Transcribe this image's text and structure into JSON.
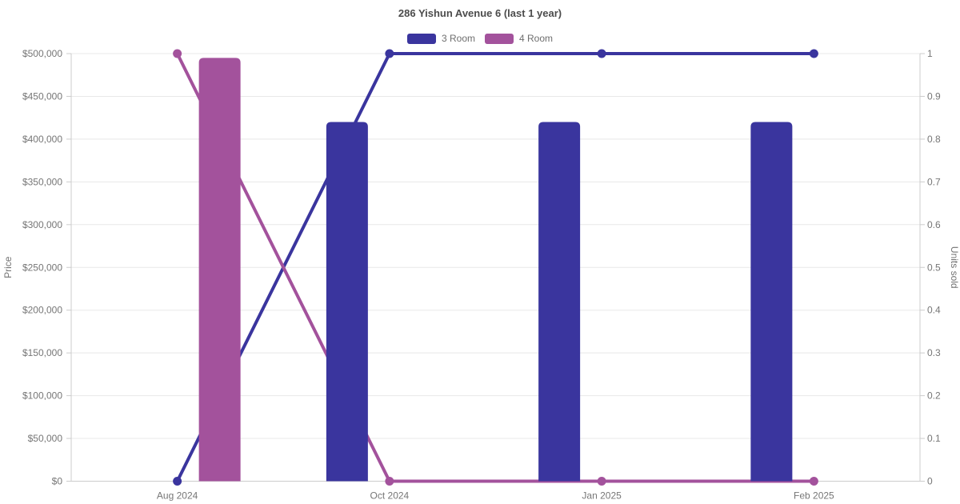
{
  "chart_data": {
    "type": "bar+line",
    "title": "286 Yishun Avenue 6 (last 1 year)",
    "categories": [
      "Aug 2024",
      "Oct 2024",
      "Jan 2025",
      "Feb 2025"
    ],
    "bar_series": [
      {
        "name": "3 Room",
        "color": "#3a359e",
        "axis": "left",
        "values": [
          null,
          420000,
          420000,
          420000
        ]
      },
      {
        "name": "4 Room",
        "color": "#a3529c",
        "axis": "left",
        "values": [
          495000,
          null,
          null,
          null
        ]
      }
    ],
    "line_series": [
      {
        "name": "3 Room",
        "color": "#3a359e",
        "axis": "right",
        "values": [
          0,
          1,
          1,
          1
        ]
      },
      {
        "name": "4 Room",
        "color": "#a3529c",
        "axis": "right",
        "values": [
          1,
          0,
          0,
          0
        ]
      }
    ],
    "left_axis": {
      "label": "Price",
      "min": 0,
      "max": 500000,
      "step": 50000,
      "tick_labels": [
        "$0",
        "$50,000",
        "$100,000",
        "$150,000",
        "$200,000",
        "$250,000",
        "$300,000",
        "$350,000",
        "$400,000",
        "$450,000",
        "$500,000"
      ]
    },
    "right_axis": {
      "label": "Units sold",
      "min": 0,
      "max": 1,
      "step": 0.1,
      "tick_labels": [
        "0",
        "0.1",
        "0.2",
        "0.3",
        "0.4",
        "0.5",
        "0.6",
        "0.7",
        "0.8",
        "0.9",
        "1"
      ]
    },
    "legend": [
      {
        "label": "3 Room",
        "color": "#3a359e"
      },
      {
        "label": "4 Room",
        "color": "#a3529c"
      }
    ],
    "legend_position": "top",
    "grid": true,
    "colors": {
      "gridline": "#e8e8e8",
      "axis_line": "#cccccc",
      "tick_text": "#767676",
      "axis_name_text": "#737373",
      "title_text": "#4c4c4c",
      "legend_text": "#6e6e6e",
      "background": "#ffffff"
    }
  }
}
